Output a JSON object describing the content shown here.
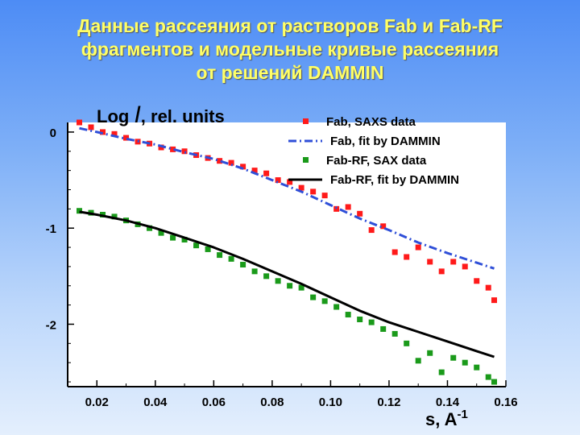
{
  "slide": {
    "title_lines": [
      "Данные рассеяния от растворов Fab и Fab-RF",
      "фрагментов и модельные кривые рассеяния",
      "от решений DAMMIN"
    ]
  },
  "chart_data": {
    "type": "scatter",
    "ylabel": {
      "prefix": "Log ",
      "italic": "I",
      "suffix": ", rel. units"
    },
    "xlabel": {
      "base": "s, A",
      "sup": "-1"
    },
    "xlim": [
      0.01,
      0.16
    ],
    "ylim": [
      -2.65,
      0.1
    ],
    "x_ticks": [
      0.02,
      0.04,
      0.06,
      0.08,
      0.1,
      0.12,
      0.14,
      0.16
    ],
    "x_tick_labels": [
      "0.02",
      "0.04",
      "0.06",
      "0.08",
      "0.10",
      "0.12",
      "0.14",
      "0.16"
    ],
    "y_ticks": [
      0,
      -1,
      -2
    ],
    "y_tick_labels": [
      "0",
      "-1",
      "-2"
    ],
    "legend_position": "top-right",
    "series": [
      {
        "name": "Fab, SAXS data",
        "kind": "points",
        "color": "#ff1a1a",
        "x": [
          0.014,
          0.018,
          0.022,
          0.026,
          0.03,
          0.034,
          0.038,
          0.042,
          0.046,
          0.05,
          0.054,
          0.058,
          0.062,
          0.066,
          0.07,
          0.074,
          0.078,
          0.082,
          0.086,
          0.09,
          0.094,
          0.098,
          0.102,
          0.106,
          0.11,
          0.114,
          0.118,
          0.122,
          0.126,
          0.13,
          0.134,
          0.138,
          0.142,
          0.146,
          0.15,
          0.154,
          0.156
        ],
        "y": [
          0.1,
          0.05,
          0.0,
          -0.02,
          -0.06,
          -0.1,
          -0.12,
          -0.16,
          -0.18,
          -0.2,
          -0.24,
          -0.27,
          -0.3,
          -0.32,
          -0.36,
          -0.4,
          -0.43,
          -0.5,
          -0.52,
          -0.58,
          -0.62,
          -0.66,
          -0.8,
          -0.78,
          -0.85,
          -1.02,
          -0.98,
          -1.25,
          -1.3,
          -1.2,
          -1.35,
          -1.45,
          -1.35,
          -1.4,
          -1.55,
          -1.62,
          -1.75
        ]
      },
      {
        "name": "Fab, fit by DAMMIN",
        "kind": "line",
        "color": "#2f4fd8",
        "dash": "dash-dot",
        "x": [
          0.014,
          0.02,
          0.03,
          0.04,
          0.05,
          0.06,
          0.07,
          0.08,
          0.09,
          0.1,
          0.11,
          0.12,
          0.13,
          0.14,
          0.15,
          0.156
        ],
        "y": [
          0.04,
          0.0,
          -0.07,
          -0.13,
          -0.21,
          -0.28,
          -0.38,
          -0.5,
          -0.62,
          -0.76,
          -0.9,
          -1.02,
          -1.15,
          -1.26,
          -1.36,
          -1.42
        ]
      },
      {
        "name": "Fab-RF, SAX data",
        "kind": "points",
        "color": "#1a9a1a",
        "x": [
          0.014,
          0.018,
          0.022,
          0.026,
          0.03,
          0.034,
          0.038,
          0.042,
          0.046,
          0.05,
          0.054,
          0.058,
          0.062,
          0.066,
          0.07,
          0.074,
          0.078,
          0.082,
          0.086,
          0.09,
          0.094,
          0.098,
          0.102,
          0.106,
          0.11,
          0.114,
          0.118,
          0.122,
          0.126,
          0.13,
          0.134,
          0.138,
          0.142,
          0.146,
          0.15,
          0.154,
          0.156
        ],
        "y": [
          -0.82,
          -0.84,
          -0.86,
          -0.88,
          -0.92,
          -0.96,
          -1.0,
          -1.05,
          -1.1,
          -1.12,
          -1.18,
          -1.22,
          -1.28,
          -1.32,
          -1.38,
          -1.45,
          -1.5,
          -1.55,
          -1.6,
          -1.62,
          -1.72,
          -1.76,
          -1.82,
          -1.9,
          -1.95,
          -1.98,
          -2.05,
          -2.1,
          -2.2,
          -2.38,
          -2.3,
          -2.5,
          -2.35,
          -2.4,
          -2.45,
          -2.55,
          -2.6
        ]
      },
      {
        "name": "Fab-RF, fit by DAMMIN",
        "kind": "line",
        "color": "#000000",
        "dash": "solid",
        "x": [
          0.014,
          0.02,
          0.03,
          0.04,
          0.05,
          0.06,
          0.07,
          0.08,
          0.09,
          0.1,
          0.11,
          0.12,
          0.13,
          0.14,
          0.15,
          0.156
        ],
        "y": [
          -0.83,
          -0.86,
          -0.92,
          -1.0,
          -1.1,
          -1.2,
          -1.32,
          -1.45,
          -1.58,
          -1.72,
          -1.86,
          -1.98,
          -2.08,
          -2.18,
          -2.28,
          -2.34
        ]
      }
    ]
  }
}
